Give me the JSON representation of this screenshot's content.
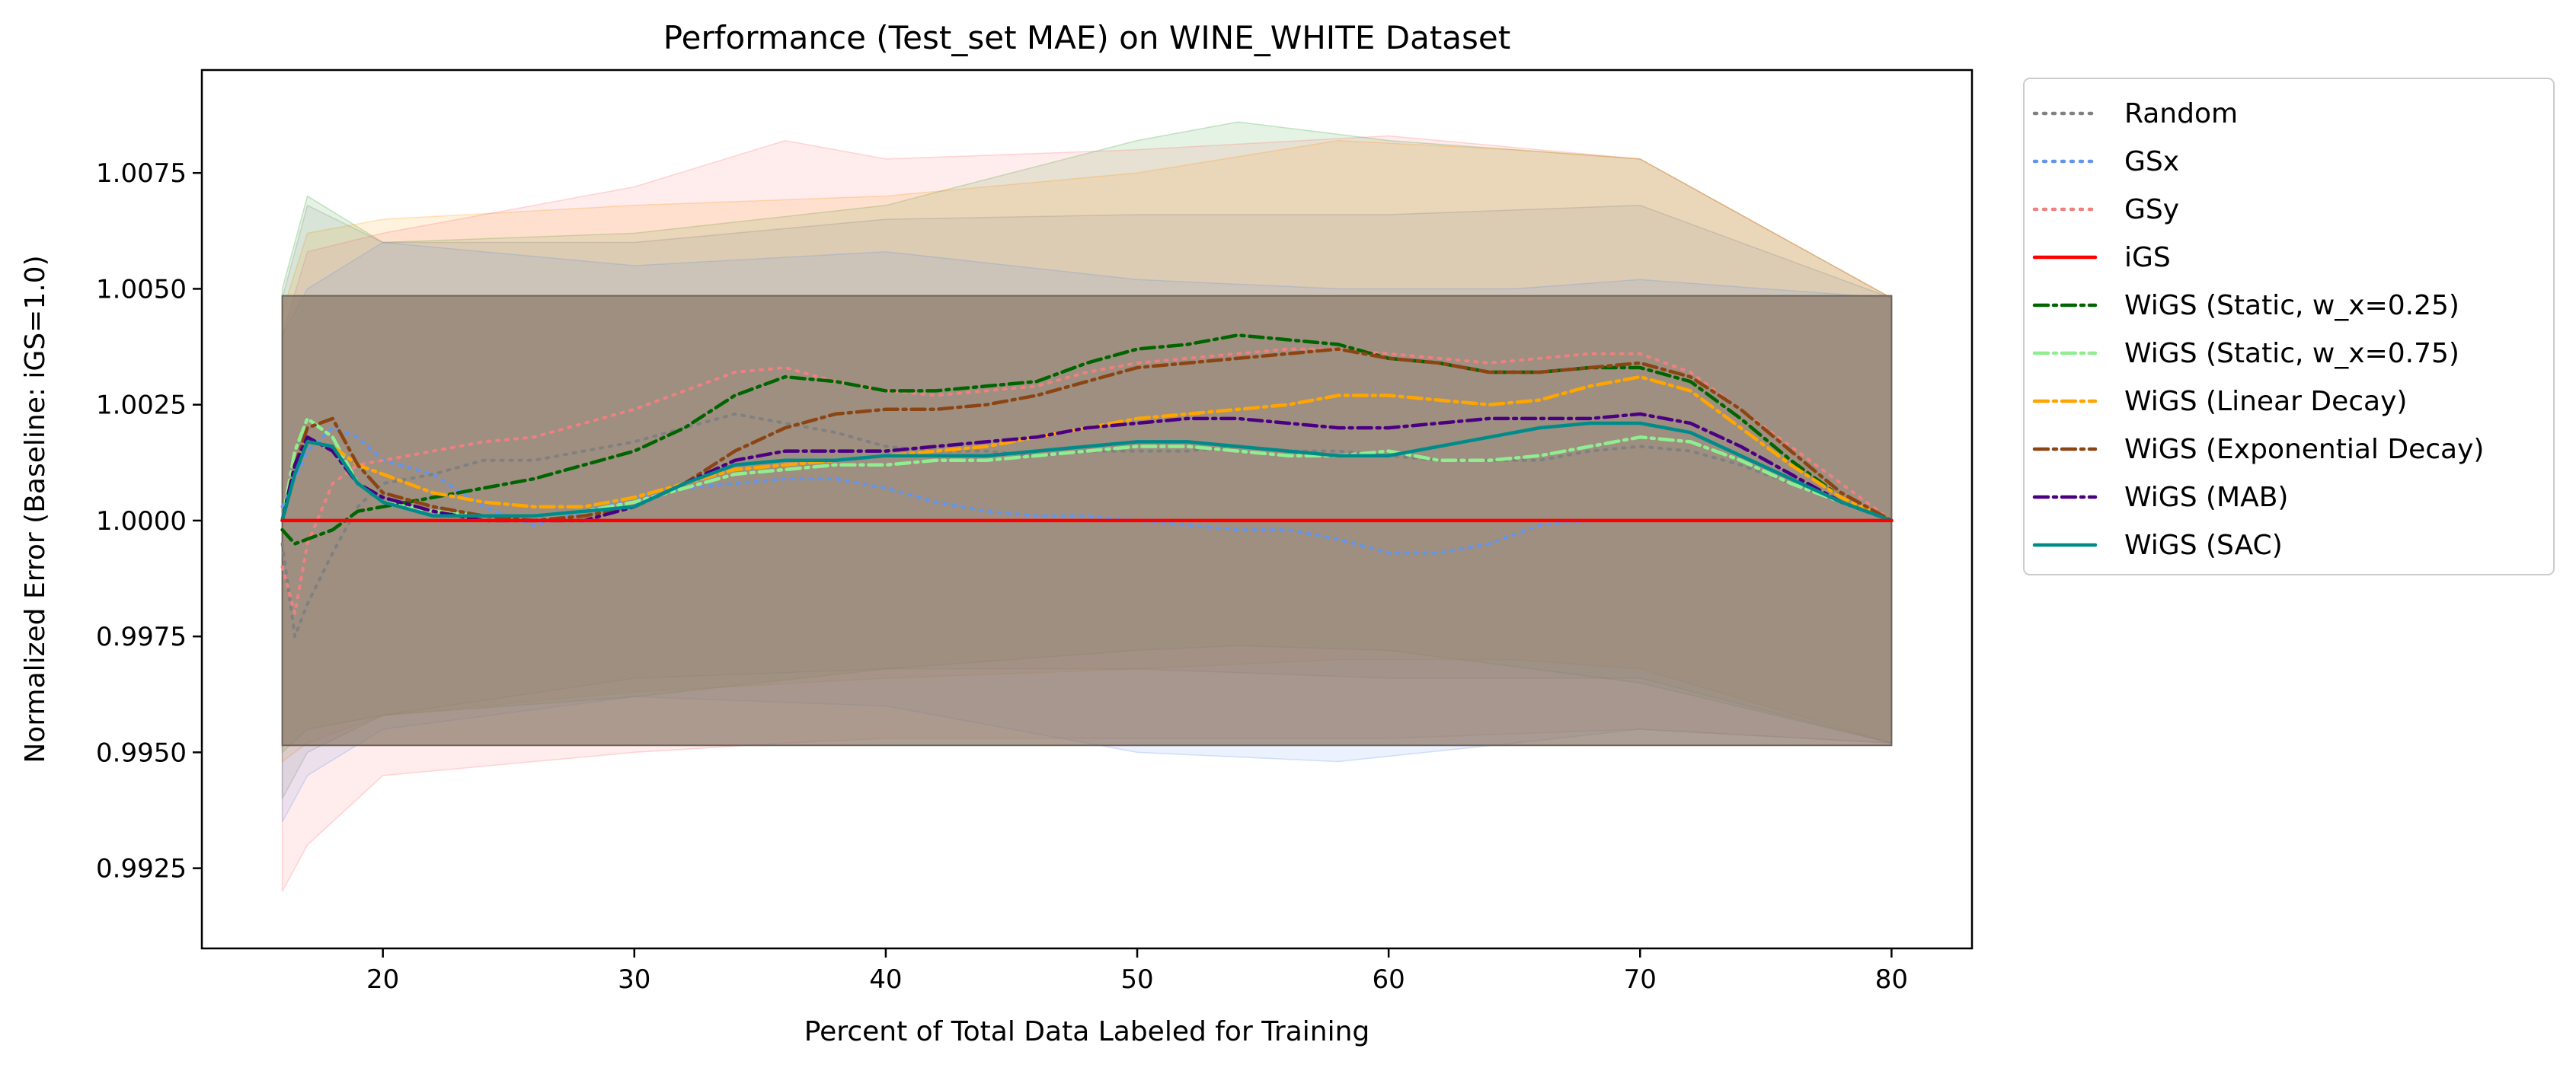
{
  "chart_data": {
    "type": "line",
    "title": "Performance (Test_set MAE) on WINE_WHITE Dataset",
    "xlabel": "Percent of Total Data Labeled for Training",
    "ylabel": "Normalized Error (Baseline: iGS=1.0)",
    "xlim": [
      12.8,
      83.2
    ],
    "ylim": [
      0.99077,
      1.00972
    ],
    "xticks": [
      20,
      30,
      40,
      50,
      60,
      70,
      80
    ],
    "yticks": [
      0.9925,
      0.995,
      0.9975,
      1.0,
      1.0025,
      1.005,
      1.0075
    ],
    "ytick_labels": [
      "0.9925",
      "0.9950",
      "0.9975",
      "1.0000",
      "1.0025",
      "1.0050",
      "1.0075"
    ],
    "legend_position": "outside-top-right",
    "grid": false,
    "series": [
      {
        "name": "Random",
        "color": "#808080",
        "dash": "dotted",
        "band": false,
        "x": [
          16,
          16.5,
          17,
          18,
          19,
          20,
          22,
          24,
          26,
          28,
          30,
          32,
          34,
          36,
          38,
          40,
          42,
          44,
          46,
          48,
          50,
          52,
          54,
          56,
          58,
          60,
          62,
          64,
          66,
          68,
          70,
          72,
          74,
          76,
          78,
          80
        ],
        "y": [
          0.9995,
          0.9975,
          0.9982,
          0.9993,
          1.0003,
          1.0008,
          1.001,
          1.0013,
          1.0013,
          1.0015,
          1.0017,
          1.002,
          1.0023,
          1.0021,
          1.0019,
          1.0016,
          1.0015,
          1.0015,
          1.0014,
          1.0015,
          1.0015,
          1.0015,
          1.0016,
          1.0015,
          1.0015,
          1.0014,
          1.0013,
          1.0013,
          1.0013,
          1.0015,
          1.0016,
          1.0015,
          1.0012,
          1.0008,
          1.0004,
          1.0
        ]
      },
      {
        "name": "GSx",
        "color": "#6495ED",
        "dash": "dotted",
        "band": false,
        "x": [
          16,
          17,
          18,
          19,
          20,
          22,
          24,
          26,
          28,
          30,
          32,
          34,
          36,
          38,
          40,
          42,
          44,
          46,
          48,
          50,
          52,
          54,
          56,
          58,
          60,
          62,
          64,
          66,
          68
        ],
        "y": [
          1.0003,
          1.0015,
          1.002,
          1.0018,
          1.0013,
          1.001,
          1.0003,
          0.9999,
          1.0002,
          1.0005,
          1.0007,
          1.0008,
          1.0009,
          1.0009,
          1.0007,
          1.0004,
          1.0002,
          1.0001,
          1.0001,
          1.0,
          0.9999,
          0.9998,
          0.9998,
          0.9996,
          0.9993,
          0.9993,
          0.9995,
          0.9999,
          1.0
        ]
      },
      {
        "name": "GSy",
        "color": "#F08080",
        "dash": "dotted",
        "band": false,
        "x": [
          16,
          16.5,
          17,
          18,
          19,
          20,
          22,
          24,
          26,
          28,
          30,
          32,
          34,
          36,
          38,
          40,
          42,
          44,
          46,
          48,
          50,
          52,
          54,
          56,
          58,
          60,
          62,
          64,
          66,
          68,
          70,
          72,
          74,
          76,
          78,
          80
        ],
        "y": [
          0.999,
          0.998,
          0.9995,
          1.0008,
          1.0012,
          1.0013,
          1.0015,
          1.0017,
          1.0018,
          1.0021,
          1.0024,
          1.0028,
          1.0032,
          1.0033,
          1.003,
          1.0028,
          1.0027,
          1.0028,
          1.0029,
          1.0032,
          1.0034,
          1.0035,
          1.0036,
          1.0037,
          1.0037,
          1.0036,
          1.0035,
          1.0034,
          1.0035,
          1.0036,
          1.0036,
          1.0032,
          1.0024,
          1.0016,
          1.0008,
          1.0
        ]
      },
      {
        "name": "iGS",
        "color": "#FF0000",
        "dash": "solid",
        "band": true,
        "x": [
          16,
          80
        ],
        "y": [
          1.0,
          1.0
        ],
        "y_low": [
          0.99515,
          0.99515
        ],
        "y_high": [
          1.00485,
          1.00485
        ]
      },
      {
        "name": "WiGS (Static, w_x=0.25)",
        "color": "#006400",
        "dash": "dashdot",
        "band": false,
        "x": [
          16,
          16.5,
          17,
          18,
          19,
          20,
          22,
          24,
          26,
          28,
          30,
          32,
          34,
          36,
          38,
          40,
          42,
          44,
          46,
          48,
          50,
          52,
          54,
          56,
          58,
          60,
          62,
          64,
          66,
          68,
          70,
          72,
          74,
          76,
          78,
          80
        ],
        "y": [
          0.9998,
          0.9995,
          0.9996,
          0.9998,
          1.0002,
          1.0003,
          1.0005,
          1.0007,
          1.0009,
          1.0012,
          1.0015,
          1.002,
          1.0027,
          1.0031,
          1.003,
          1.0028,
          1.0028,
          1.0029,
          1.003,
          1.0034,
          1.0037,
          1.0038,
          1.004,
          1.0039,
          1.0038,
          1.0035,
          1.0034,
          1.0032,
          1.0032,
          1.0033,
          1.0033,
          1.003,
          1.0022,
          1.0013,
          1.0005,
          1.0
        ]
      },
      {
        "name": "WiGS (Static, w_x=0.75)",
        "color": "#90EE90",
        "dash": "dashdot",
        "band": false,
        "x": [
          16,
          16.5,
          17,
          18,
          19,
          20,
          22,
          24,
          26,
          28,
          30,
          32,
          34,
          36,
          38,
          40,
          42,
          44,
          46,
          48,
          50,
          52,
          54,
          56,
          58,
          60,
          62,
          64,
          66,
          68,
          70,
          72,
          74,
          76,
          78,
          80
        ],
        "y": [
          1.0,
          1.0015,
          1.0022,
          1.0018,
          1.0008,
          1.0004,
          1.0002,
          1.0001,
          1.0001,
          1.0002,
          1.0004,
          1.0007,
          1.001,
          1.0011,
          1.0012,
          1.0012,
          1.0013,
          1.0013,
          1.0014,
          1.0015,
          1.0016,
          1.0016,
          1.0015,
          1.0014,
          1.0014,
          1.0015,
          1.0013,
          1.0013,
          1.0014,
          1.0016,
          1.0018,
          1.0017,
          1.0013,
          1.0008,
          1.0004,
          1.0
        ]
      },
      {
        "name": "WiGS (Linear Decay)",
        "color": "#FFA500",
        "dash": "dashdot",
        "band": false,
        "x": [
          16,
          16.5,
          17,
          18,
          19,
          20,
          22,
          24,
          26,
          28,
          30,
          32,
          34,
          36,
          38,
          40,
          42,
          44,
          46,
          48,
          50,
          52,
          54,
          56,
          58,
          60,
          62,
          64,
          66,
          68,
          70,
          72,
          74,
          76,
          78,
          80
        ],
        "y": [
          1.0,
          1.0012,
          1.0017,
          1.0016,
          1.0012,
          1.001,
          1.0006,
          1.0004,
          1.0003,
          1.0003,
          1.0005,
          1.0008,
          1.0011,
          1.0012,
          1.0013,
          1.0014,
          1.0015,
          1.0016,
          1.0018,
          1.002,
          1.0022,
          1.0023,
          1.0024,
          1.0025,
          1.0027,
          1.0027,
          1.0026,
          1.0025,
          1.0026,
          1.0029,
          1.0031,
          1.0028,
          1.002,
          1.0012,
          1.0005,
          1.0
        ]
      },
      {
        "name": "WiGS (Exponential Decay)",
        "color": "#8B4513",
        "dash": "dashdot",
        "band": false,
        "x": [
          16,
          16.5,
          17,
          18,
          19,
          20,
          22,
          24,
          26,
          28,
          30,
          32,
          34,
          36,
          38,
          40,
          42,
          44,
          46,
          48,
          50,
          52,
          54,
          56,
          58,
          60,
          62,
          64,
          66,
          68,
          70,
          72,
          74,
          76,
          78,
          80
        ],
        "y": [
          1.0,
          1.0012,
          1.002,
          1.0022,
          1.0012,
          1.0006,
          1.0003,
          1.0001,
          1.0,
          1.0001,
          1.0003,
          1.0008,
          1.0015,
          1.002,
          1.0023,
          1.0024,
          1.0024,
          1.0025,
          1.0027,
          1.003,
          1.0033,
          1.0034,
          1.0035,
          1.0036,
          1.0037,
          1.0035,
          1.0034,
          1.0032,
          1.0032,
          1.0033,
          1.0034,
          1.0031,
          1.0024,
          1.0015,
          1.0006,
          1.0
        ]
      },
      {
        "name": "WiGS (MAB)",
        "color": "#4B0082",
        "dash": "dashdot",
        "band": false,
        "x": [
          16,
          16.5,
          17,
          18,
          19,
          20,
          22,
          24,
          26,
          28,
          30,
          32,
          34,
          36,
          38,
          40,
          42,
          44,
          46,
          48,
          50,
          52,
          54,
          56,
          58,
          60,
          62,
          64,
          66,
          68,
          70,
          72,
          74,
          76,
          78,
          80
        ],
        "y": [
          1.0,
          1.0012,
          1.0018,
          1.0015,
          1.0008,
          1.0005,
          1.0002,
          1.0,
          1.0,
          1.0,
          1.0003,
          1.0008,
          1.0013,
          1.0015,
          1.0015,
          1.0015,
          1.0016,
          1.0017,
          1.0018,
          1.002,
          1.0021,
          1.0022,
          1.0022,
          1.0021,
          1.002,
          1.002,
          1.0021,
          1.0022,
          1.0022,
          1.0022,
          1.0023,
          1.0021,
          1.0016,
          1.001,
          1.0004,
          1.0
        ]
      },
      {
        "name": "WiGS (SAC)",
        "color": "#008B8B",
        "dash": "solid",
        "band": false,
        "x": [
          16,
          16.5,
          17,
          18,
          19,
          20,
          22,
          24,
          26,
          28,
          30,
          32,
          34,
          36,
          38,
          40,
          42,
          44,
          46,
          48,
          50,
          52,
          54,
          56,
          58,
          60,
          62,
          64,
          66,
          68,
          70,
          72,
          74,
          76,
          78,
          80
        ],
        "y": [
          1.0,
          1.001,
          1.0017,
          1.0016,
          1.0008,
          1.0004,
          1.0001,
          1.0001,
          1.0001,
          1.0002,
          1.0003,
          1.0008,
          1.0012,
          1.0013,
          1.0013,
          1.0014,
          1.0014,
          1.0014,
          1.0015,
          1.0016,
          1.0017,
          1.0017,
          1.0016,
          1.0015,
          1.0014,
          1.0014,
          1.0016,
          1.0018,
          1.002,
          1.0021,
          1.0021,
          1.0019,
          1.0014,
          1.0009,
          1.0004,
          1.0
        ]
      }
    ],
    "background_bands": [
      {
        "color": "#2ca02c",
        "x": [
          16,
          17,
          20,
          30,
          40,
          50,
          54,
          60,
          70,
          80
        ],
        "y_low": [
          0.995,
          0.9955,
          0.9958,
          0.9962,
          0.9968,
          0.9972,
          0.9973,
          0.9972,
          0.9965,
          0.9952
        ],
        "y_high": [
          1.005,
          1.007,
          1.006,
          1.0062,
          1.0068,
          1.0082,
          1.0086,
          1.0082,
          1.0078,
          1.0048
        ]
      },
      {
        "color": "#ff9900",
        "x": [
          16,
          17,
          20,
          30,
          40,
          50,
          58,
          65,
          70,
          80
        ],
        "y_low": [
          0.9948,
          0.9952,
          0.9958,
          0.9963,
          0.9966,
          0.9968,
          0.997,
          0.997,
          0.9968,
          0.9952
        ],
        "y_high": [
          1.0045,
          1.0062,
          1.0065,
          1.0068,
          1.007,
          1.0075,
          1.0082,
          1.008,
          1.0078,
          1.0048
        ]
      },
      {
        "color": "#ff6b6b",
        "x": [
          16,
          17,
          20,
          30,
          36,
          40,
          50,
          60,
          70,
          80
        ],
        "y_low": [
          0.992,
          0.993,
          0.9945,
          0.995,
          0.9952,
          0.9953,
          0.9953,
          0.9953,
          0.9955,
          0.9952
        ],
        "y_high": [
          1.004,
          1.0058,
          1.0062,
          1.0072,
          1.0082,
          1.0078,
          1.008,
          1.0083,
          1.0078,
          1.0048
        ]
      },
      {
        "color": "#6495ed",
        "x": [
          16,
          17,
          20,
          30,
          40,
          50,
          58,
          65,
          70,
          80
        ],
        "y_low": [
          0.9935,
          0.9945,
          0.9955,
          0.9962,
          0.996,
          0.995,
          0.9948,
          0.9952,
          0.9955,
          0.9952
        ],
        "y_high": [
          1.004,
          1.005,
          1.006,
          1.0055,
          1.0058,
          1.0052,
          1.005,
          1.005,
          1.0052,
          1.0048
        ]
      },
      {
        "color": "#808080",
        "x": [
          16,
          17,
          20,
          30,
          40,
          50,
          60,
          70,
          80
        ],
        "y_low": [
          0.994,
          0.995,
          0.9958,
          0.9966,
          0.9968,
          0.9968,
          0.9966,
          0.9966,
          0.9952
        ],
        "y_high": [
          1.0048,
          1.0068,
          1.006,
          1.006,
          1.0065,
          1.0066,
          1.0066,
          1.0068,
          1.0048
        ]
      }
    ]
  }
}
